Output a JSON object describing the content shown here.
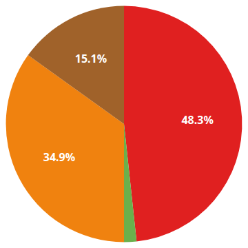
{
  "chart_data": {
    "type": "pie",
    "values": [
      48.3,
      1.7,
      34.9,
      15.1
    ],
    "value_labels": [
      "48.3%",
      null,
      "34.9%",
      "15.1%"
    ],
    "colors": [
      "#e02020",
      "#6ab04c",
      "#f0820f",
      "#a0622a"
    ],
    "data_labels": true
  }
}
